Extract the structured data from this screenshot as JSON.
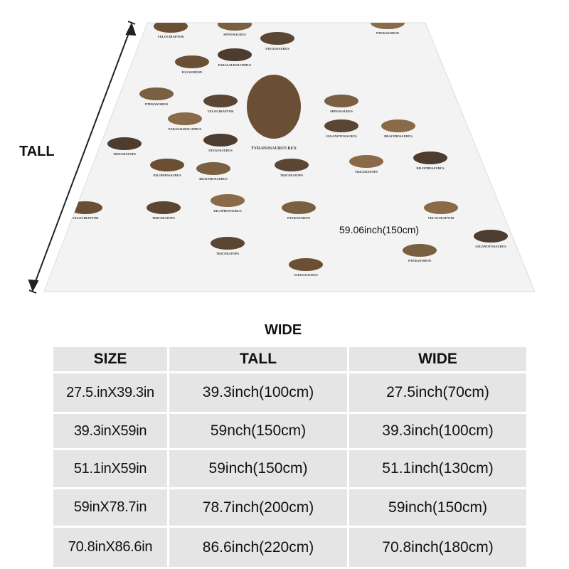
{
  "labels": {
    "tall": "TALL",
    "wide": "WIDE",
    "blanket_width": "59.06inch(150cm)"
  },
  "blanket": {
    "background": "#f3f3f3",
    "dinosaur_names": [
      "VELOCIRAPTOR",
      "SPINOSAURUS",
      "STEGOSAURUS",
      "PTERANODON",
      "PARASAUROLOPHUS",
      "IGUANODON",
      "PTERANODON",
      "VELOCIRAPTOR",
      "PARASAUROLOPHUS",
      "STEGOSAURUS",
      "TYRANOSAURUS REX",
      "SPINOSAURUS",
      "GIGANOTOSAURUS",
      "BRACHIOSAURUS",
      "TRICERATOPS",
      "DILOPHOSAURUS",
      "BRACHIOSAURUS",
      "TRICERATOPS",
      "TRICERATOPS",
      "DILOPHOSAURUS",
      "VELOCIRAPTOR",
      "PTERANODON",
      "TRICERATOPS",
      "DILOPHOSAURUS",
      "GIGANOTOSAURUS",
      "STEGOSAURUS",
      "PTERANODON",
      "TRICERATOPS",
      "VELOCIRAPTOR"
    ]
  },
  "table": {
    "headers": [
      "SIZE",
      "TALL",
      "WIDE"
    ],
    "rows": [
      [
        "27.5.inX39.3in",
        "39.3inch(100cm)",
        "27.5inch(70cm)"
      ],
      [
        "39.3inX59in",
        "59nch(150cm)",
        "39.3inch(100cm)"
      ],
      [
        "51.1inX59in",
        "59inch(150cm)",
        "51.1inch(130cm)"
      ],
      [
        "59inX78.7in",
        "78.7inch(200cm)",
        "59inch(150cm)"
      ],
      [
        "70.8inX86.6in",
        "86.6inch(220cm)",
        "70.8inch(180cm)"
      ]
    ]
  }
}
